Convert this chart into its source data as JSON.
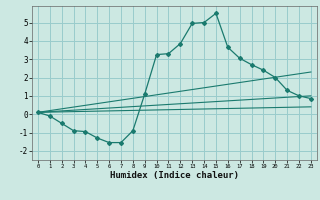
{
  "xlabel": "Humidex (Indice chaleur)",
  "background_color": "#cce8e2",
  "grid_color": "#99cccc",
  "line_color": "#1a7a6e",
  "xlim": [
    -0.5,
    23.5
  ],
  "ylim": [
    -2.5,
    5.9
  ],
  "xticks": [
    0,
    1,
    2,
    3,
    4,
    5,
    6,
    7,
    8,
    9,
    10,
    11,
    12,
    13,
    14,
    15,
    16,
    17,
    18,
    19,
    20,
    21,
    22,
    23
  ],
  "yticks": [
    -2,
    -1,
    0,
    1,
    2,
    3,
    4,
    5
  ],
  "line1_x": [
    0,
    1,
    2,
    3,
    4,
    5,
    6,
    7,
    8,
    9,
    10,
    11,
    12,
    13,
    14,
    15,
    16,
    17,
    18,
    19,
    20,
    21,
    22,
    23
  ],
  "line1_y": [
    0.1,
    -0.1,
    -0.5,
    -0.9,
    -0.95,
    -1.3,
    -1.55,
    -1.55,
    -0.9,
    1.1,
    3.25,
    3.3,
    3.85,
    4.95,
    5.0,
    5.5,
    3.65,
    3.05,
    2.7,
    2.4,
    2.0,
    1.3,
    1.0,
    0.85
  ],
  "line2_x": [
    0,
    23
  ],
  "line2_y": [
    0.1,
    1.0
  ],
  "line3_x": [
    0,
    23
  ],
  "line3_y": [
    0.1,
    0.4
  ],
  "line4_x": [
    0,
    23
  ],
  "line4_y": [
    0.1,
    2.3
  ]
}
